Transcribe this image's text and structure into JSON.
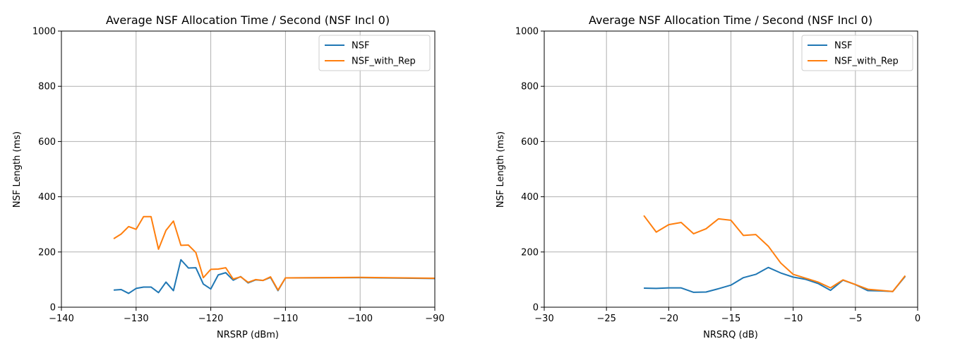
{
  "colors": {
    "nsf": "#1f77b4",
    "nsf_with_rep": "#ff7f0e",
    "grid": "#b0b0b0",
    "axis": "#000000"
  },
  "chart_data": [
    {
      "type": "line",
      "title": "Average NSF Allocation Time / Second (NSF Incl 0)",
      "xlabel": "NRSRP (dBm)",
      "ylabel": "NSF Length (ms)",
      "xlim": [
        -140,
        -90
      ],
      "ylim": [
        0,
        1000
      ],
      "xticks": [
        -140,
        -130,
        -120,
        -110,
        -100,
        -90
      ],
      "xtick_labels": [
        "−140",
        "−130",
        "−120",
        "−110",
        "−100",
        "−90"
      ],
      "yticks": [
        0,
        200,
        400,
        600,
        800,
        1000
      ],
      "ytick_labels": [
        "0",
        "200",
        "400",
        "600",
        "800",
        "1000"
      ],
      "grid": true,
      "legend_position": "top-right",
      "series": [
        {
          "name": "NSF",
          "color": "#1f77b4",
          "x": [
            -133,
            -132,
            -131,
            -130,
            -129,
            -128,
            -127,
            -126,
            -125,
            -124,
            -123,
            -122,
            -121,
            -120,
            -119,
            -118,
            -117,
            -116,
            -115,
            -114,
            -113,
            -112,
            -111,
            -110,
            -100,
            -90
          ],
          "y": [
            62,
            64,
            50,
            68,
            73,
            73,
            53,
            91,
            60,
            172,
            142,
            143,
            84,
            66,
            117,
            125,
            98,
            111,
            88,
            99,
            97,
            108,
            60,
            106,
            107,
            104
          ]
        },
        {
          "name": "NSF_with_Rep",
          "color": "#ff7f0e",
          "x": [
            -133,
            -132,
            -131,
            -130,
            -129,
            -128,
            -127,
            -126,
            -125,
            -124,
            -123,
            -122,
            -121,
            -120,
            -119,
            -118,
            -117,
            -116,
            -115,
            -114,
            -113,
            -112,
            -111,
            -110,
            -100,
            -90
          ],
          "y": [
            248,
            265,
            292,
            282,
            328,
            328,
            210,
            278,
            312,
            224,
            225,
            198,
            107,
            137,
            138,
            143,
            102,
            110,
            90,
            100,
            97,
            110,
            62,
            106,
            108,
            105
          ]
        }
      ]
    },
    {
      "type": "line",
      "title": "Average NSF Allocation Time / Second (NSF Incl 0)",
      "xlabel": "NRSRQ (dB)",
      "ylabel": "NSF Length (ms)",
      "xlim": [
        -30,
        0
      ],
      "ylim": [
        0,
        1000
      ],
      "xticks": [
        -30,
        -25,
        -20,
        -15,
        -10,
        -5,
        0
      ],
      "xtick_labels": [
        "−30",
        "−25",
        "−20",
        "−15",
        "−10",
        "−5",
        "0"
      ],
      "yticks": [
        0,
        200,
        400,
        600,
        800,
        1000
      ],
      "ytick_labels": [
        "0",
        "200",
        "400",
        "600",
        "800",
        "1000"
      ],
      "grid": true,
      "legend_position": "top-right",
      "series": [
        {
          "name": "NSF",
          "color": "#1f77b4",
          "x": [
            -22,
            -21,
            -20,
            -19,
            -18,
            -17,
            -16,
            -15,
            -14,
            -13,
            -12,
            -11,
            -10,
            -9,
            -8,
            -7,
            -6,
            -5,
            -4,
            -3,
            -2,
            -1
          ],
          "y": [
            69,
            68,
            70,
            70,
            54,
            55,
            67,
            80,
            107,
            119,
            144,
            124,
            109,
            101,
            86,
            61,
            98,
            82,
            60,
            59,
            57,
            112
          ]
        },
        {
          "name": "NSF_with_Rep",
          "color": "#ff7f0e",
          "x": [
            -22,
            -21,
            -20,
            -19,
            -18,
            -17,
            -16,
            -15,
            -14,
            -13,
            -12,
            -11,
            -10,
            -9,
            -8,
            -7,
            -6,
            -5,
            -4,
            -3,
            -2,
            -1
          ],
          "y": [
            332,
            272,
            299,
            307,
            266,
            284,
            320,
            315,
            260,
            263,
            221,
            160,
            119,
            105,
            91,
            70,
            99,
            82,
            65,
            61,
            57,
            114
          ]
        }
      ]
    }
  ]
}
